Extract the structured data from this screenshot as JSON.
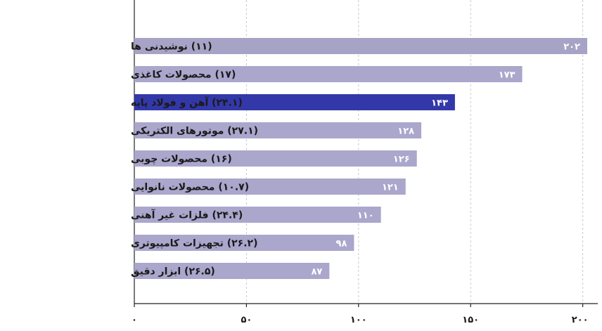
{
  "chart_data": {
    "type": "bar",
    "orientation": "horizontal",
    "categories": [
      "(۱۱) نوشیدنی ها",
      "(۱۷) محصولات کاغذی",
      "(۲۴.۱) آهن و فولاد پایه",
      "(۲۷.۱) موتورهای الکتریکی",
      "(۱۶) محصولات چوبی",
      "(۱۰.۷) محصولات نانوایی",
      "(۲۴.۴) فلزات غیر آهنی",
      "(۲۶.۲) تجهیزات کامپیوتری",
      "(۲۶.۵) ابزار دقیق"
    ],
    "values": [
      202,
      173,
      143,
      128,
      126,
      121,
      110,
      98,
      87
    ],
    "value_labels": [
      "۲۰۲",
      "۱۷۳",
      "۱۴۳",
      "۱۲۸",
      "۱۲۶",
      "۱۲۱",
      "۱۱۰",
      "۹۸",
      "۸۷"
    ],
    "highlight_index": 2,
    "xlim": [
      0,
      202
    ],
    "xticks": [
      0,
      50,
      100,
      150,
      200
    ],
    "xtick_labels": [
      "۰",
      "۵۰",
      "۱۰۰",
      "۱۵۰",
      "۲۰۰"
    ],
    "grid": "vertical dashed",
    "title": "",
    "xlabel": "",
    "ylabel": "",
    "colors": {
      "bar": "#aaa6cc",
      "bar_first": "#a7a3c6",
      "highlight": "#3338a8",
      "grid": "#c8c8c8",
      "axis": "#222222"
    }
  }
}
